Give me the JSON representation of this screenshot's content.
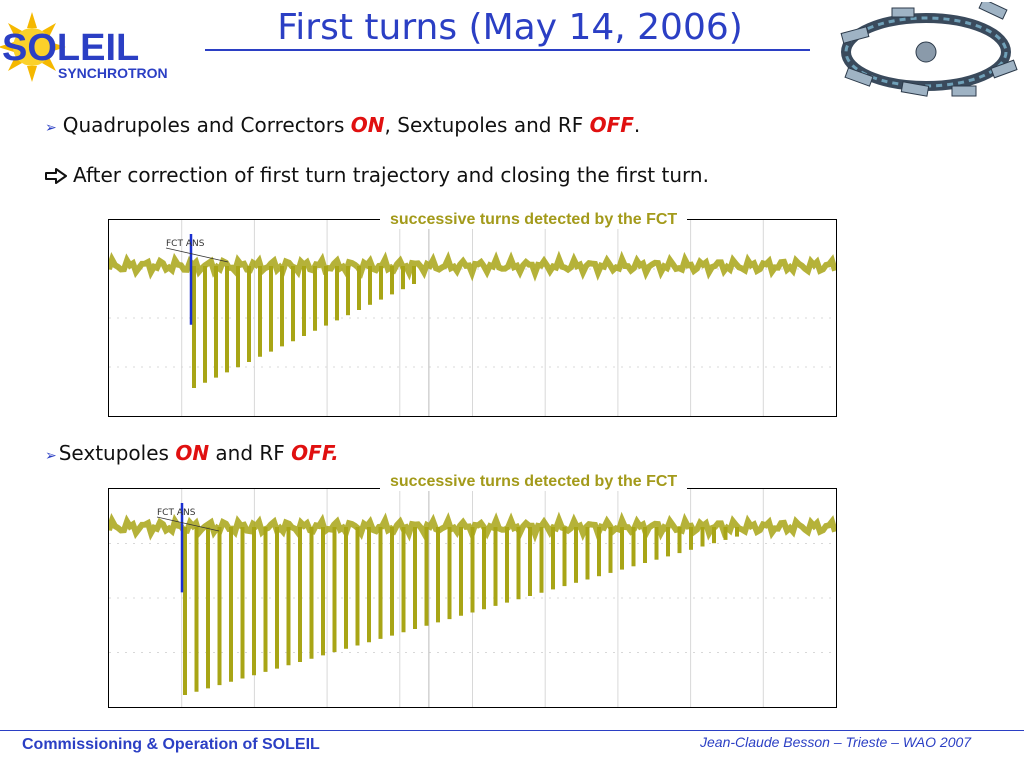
{
  "header": {
    "logo_text": "SOLEIL",
    "logo_subtext": "SYNCHROTRON",
    "title": "First turns (May 14, 2006)"
  },
  "bullets": [
    {
      "pre": "Quadrupoles and Correctors ",
      "on": "ON",
      "mid": ", Sextupoles and RF ",
      "off": "OFF",
      "post": "."
    },
    {
      "text": "After correction of first turn trajectory and closing the first turn."
    },
    {
      "pre": "Sextupoles ",
      "on": "ON",
      "mid": " and RF ",
      "off": "OFF."
    }
  ],
  "plots": [
    {
      "caption": "successive turns detected by the FCT",
      "trace_label": "FCT ANS",
      "turns": 20
    },
    {
      "caption": "successive turns detected by the FCT",
      "trace_label": "FCT ANS",
      "turns": 48
    }
  ],
  "footer": {
    "left": "Commissioning & Operation of SOLEIL",
    "right": "Jean-Claude Besson – Trieste – WAO 2007"
  },
  "colors": {
    "accent": "#2b3fc4",
    "highlight": "#e01010",
    "trace": "#a8a516"
  }
}
